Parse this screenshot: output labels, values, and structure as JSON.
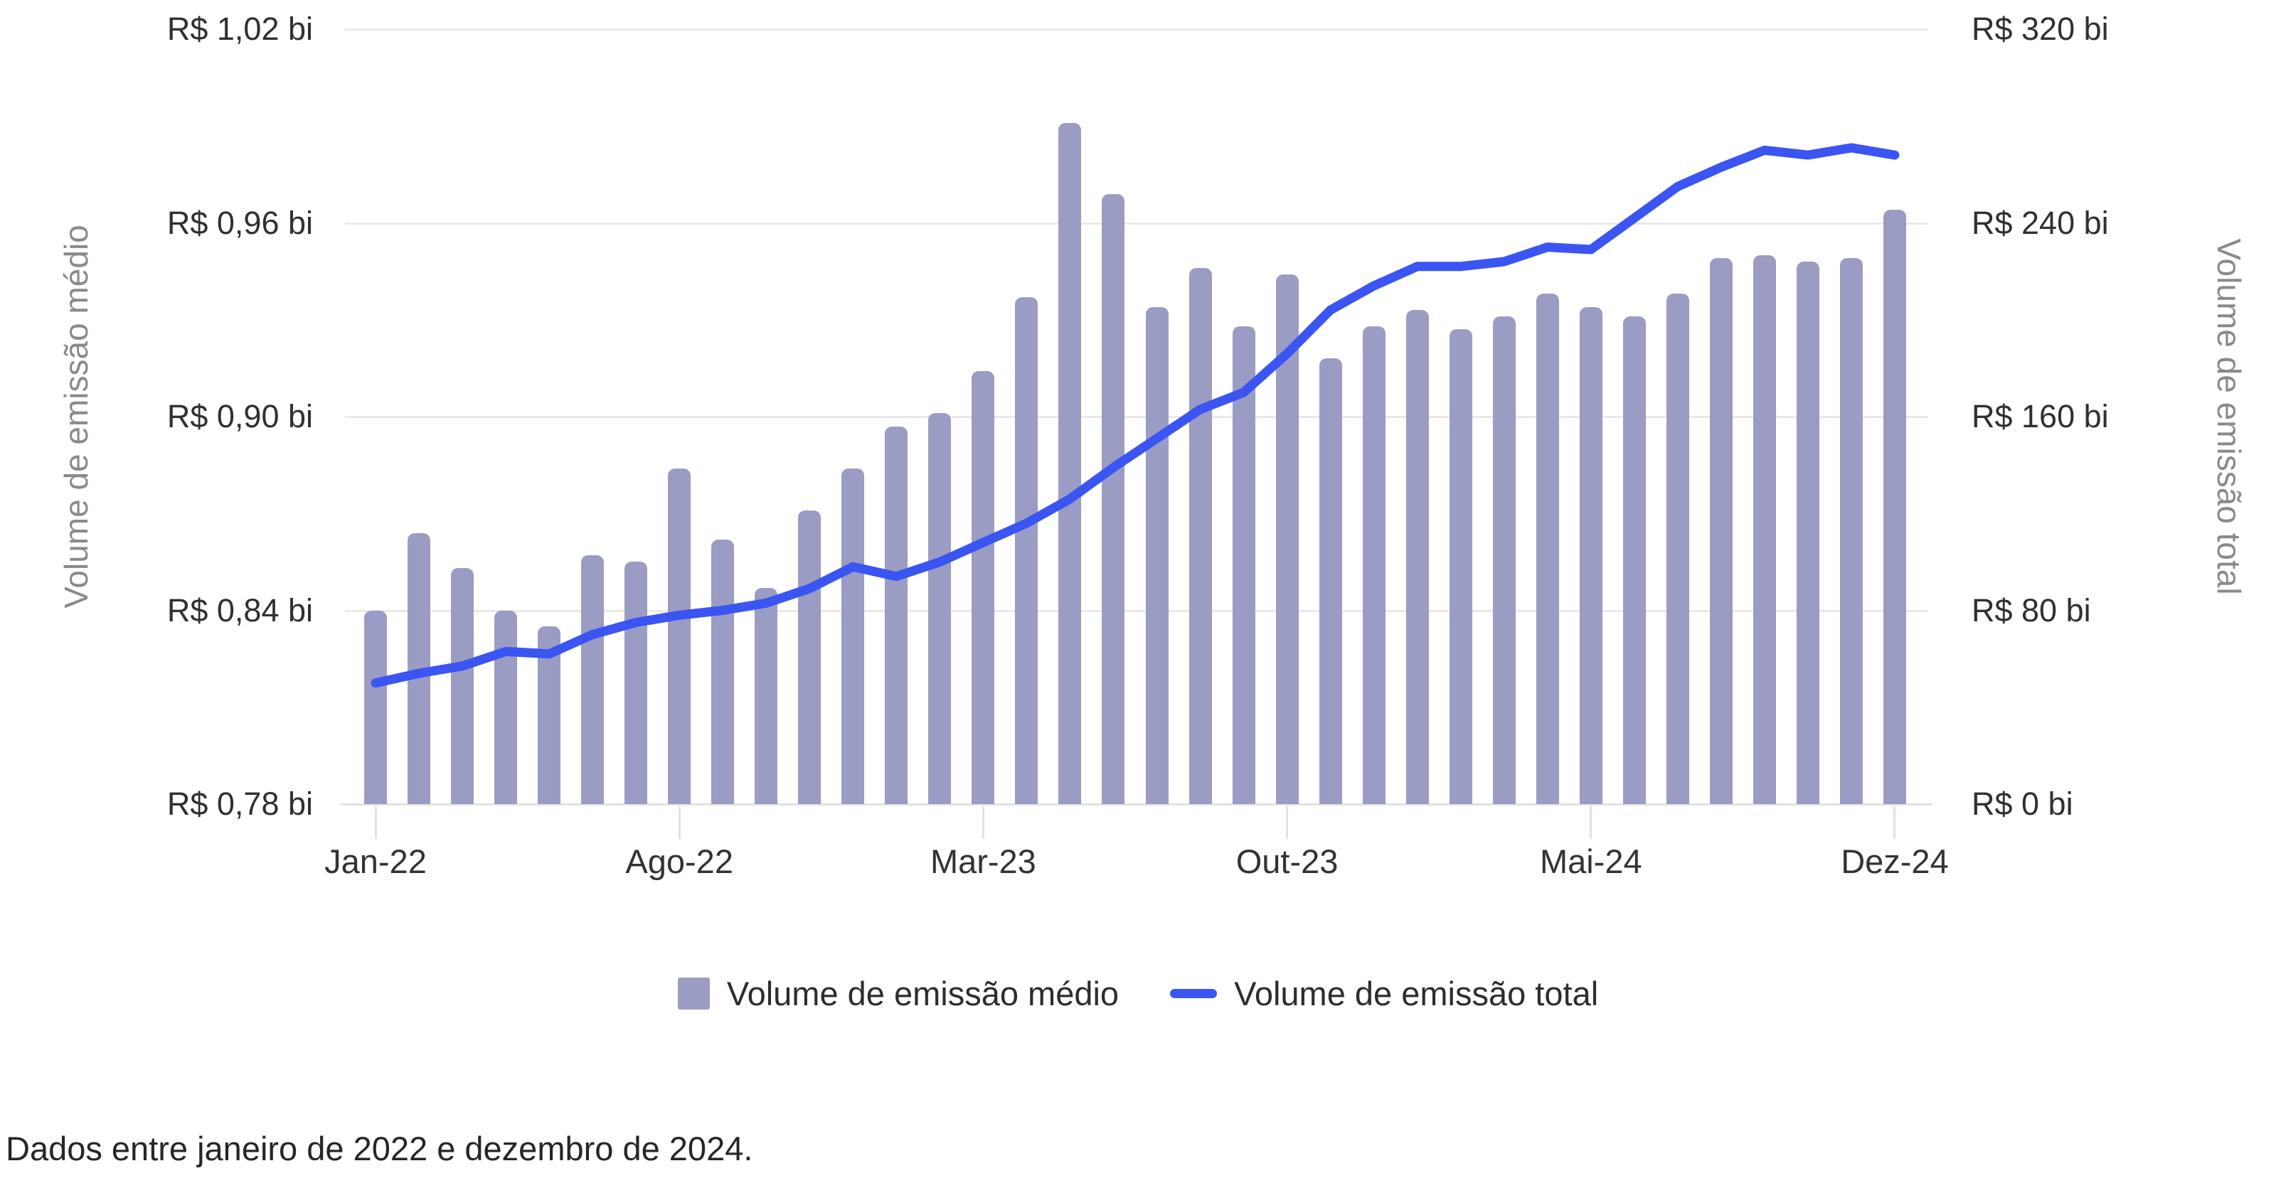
{
  "caption": "Dados entre janeiro de 2022 e dezembro de 2024.",
  "colors": {
    "background": "#ffffff",
    "bar": "#9b9cc3",
    "line": "#3b55f2",
    "gridline": "#e9e9e9",
    "axis_line": "#e2e2e2",
    "tick_text": "#303030",
    "axis_title_text": "#8a8a8a",
    "caption_text": "#262626"
  },
  "left_axis": {
    "title": "Volume de emissão médio",
    "tick_labels": [
      "R$ 1,02 bi",
      "R$ 0,96 bi",
      "R$ 0,90 bi",
      "R$ 0,84 bi",
      "R$ 0,78 bi"
    ],
    "tick_values": [
      1.02,
      0.96,
      0.9,
      0.84,
      0.78
    ]
  },
  "right_axis": {
    "title": "Volume de emissão total",
    "tick_labels": [
      "R$ 320 bi",
      "R$ 240 bi",
      "R$ 160 bi",
      "R$ 80 bi",
      "R$ 0 bi"
    ],
    "tick_values": [
      320,
      240,
      160,
      80,
      0
    ]
  },
  "x_axis": {
    "tick_indices": [
      0,
      7,
      14,
      21,
      28,
      35
    ],
    "tick_labels": [
      "Jan-22",
      "Ago-22",
      "Mar-23",
      "Out-23",
      "Mai-24",
      "Dez-24"
    ]
  },
  "legend": {
    "items": [
      {
        "label": "Volume de emissão médio",
        "marker": "square",
        "color": "#9b9cc3"
      },
      {
        "label": "Volume de emissão total",
        "marker": "line",
        "color": "#3b55f2"
      }
    ]
  },
  "chart_data": {
    "type": "bar",
    "subtype": "combo-bar-line",
    "categories": [
      "Jan-22",
      "Fev-22",
      "Mar-22",
      "Abr-22",
      "Mai-22",
      "Jun-22",
      "Jul-22",
      "Ago-22",
      "Set-22",
      "Out-22",
      "Nov-22",
      "Dez-22",
      "Jan-23",
      "Fev-23",
      "Mar-23",
      "Abr-23",
      "Mai-23",
      "Jun-23",
      "Jul-23",
      "Ago-23",
      "Set-23",
      "Out-23",
      "Nov-23",
      "Dez-23",
      "Jan-24",
      "Fev-24",
      "Mar-24",
      "Abr-24",
      "Mai-24",
      "Jun-24",
      "Jul-24",
      "Ago-24",
      "Set-24",
      "Out-24",
      "Nov-24",
      "Dez-24"
    ],
    "series": [
      {
        "name": "Volume de emissão médio",
        "type": "bar",
        "axis": "left",
        "unit": "R$ bi",
        "values": [
          0.84,
          0.864,
          0.853,
          0.84,
          0.835,
          0.857,
          0.855,
          0.884,
          0.862,
          0.847,
          0.871,
          0.884,
          0.897,
          0.901,
          0.914,
          0.937,
          0.991,
          0.969,
          0.934,
          0.946,
          0.928,
          0.944,
          0.918,
          0.928,
          0.933,
          0.927,
          0.931,
          0.938,
          0.934,
          0.931,
          0.938,
          0.949,
          0.95,
          0.948,
          0.949,
          0.964
        ]
      },
      {
        "name": "Volume de emissão total",
        "type": "line",
        "axis": "right",
        "unit": "R$ bi",
        "values": [
          50,
          54,
          57,
          63,
          62,
          70,
          75,
          78,
          80,
          83,
          89,
          98,
          94,
          100,
          108,
          116,
          126,
          139,
          151,
          163,
          170,
          186,
          204,
          214,
          222,
          222,
          224,
          230,
          229,
          242,
          255,
          263,
          270,
          268,
          271,
          268
        ]
      }
    ],
    "left_ylim": [
      0.78,
      1.02
    ],
    "right_ylim": [
      0,
      320
    ],
    "grid": "horizontal",
    "legend_position": "bottom",
    "title": "",
    "xlabel": "",
    "ylabel_left": "Volume de emissão médio",
    "ylabel_right": "Volume de emissão total"
  }
}
